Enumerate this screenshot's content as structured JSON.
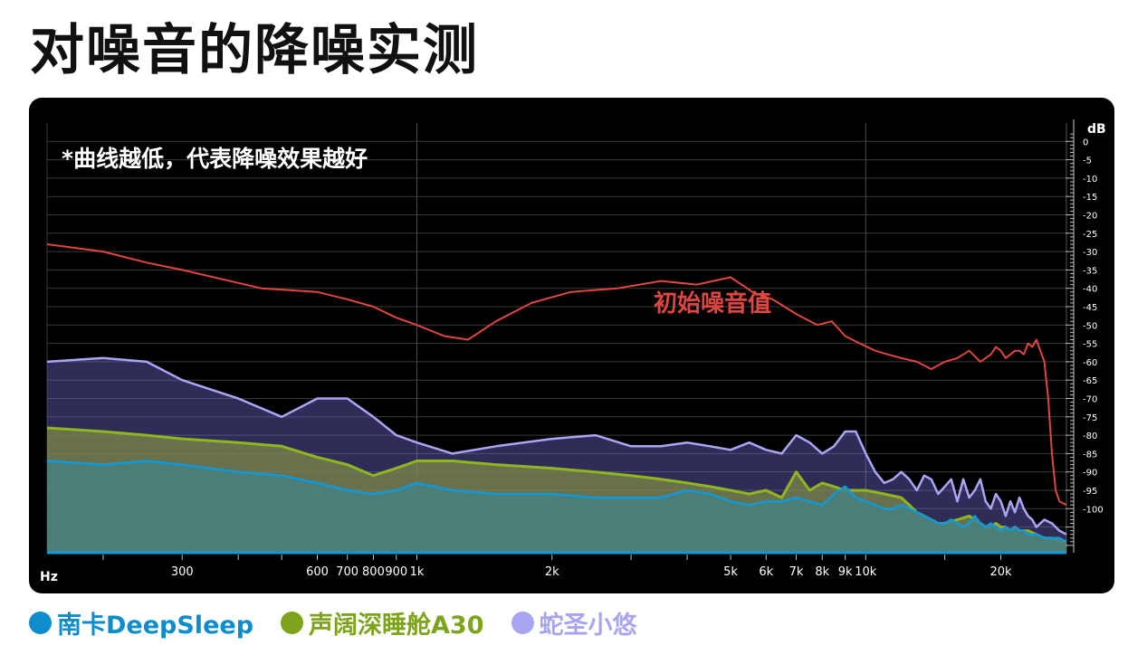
{
  "page": {
    "title": "对噪音的降噪实测"
  },
  "legend": [
    {
      "label": "南卡DeepSleep",
      "color": "#0e8ccc"
    },
    {
      "label": "声阔深睡舱A30",
      "color": "#7ea31c"
    },
    {
      "label": "蛇圣小悠",
      "color": "#a7a5ef"
    }
  ],
  "colors": {
    "background": "#000000",
    "grid": "#3a3a3a",
    "axis_text": "#ffffff",
    "original_noise": "#e0463f",
    "soundcore": "#8fb51f",
    "snake": "#a9a7f3",
    "nanka": "#0f99db"
  },
  "chart_data": {
    "type": "area",
    "title": "对噪音的降噪实测",
    "note": "*曲线越低，代表降噪效果越好",
    "xlabel": "Hz",
    "ylabel": "dB",
    "xscale": "log",
    "xlim": [
      150,
      28000
    ],
    "ylim": [
      -112,
      5
    ],
    "x_ticks": [
      {
        "value": 300,
        "label": "300"
      },
      {
        "value": 600,
        "label": "600"
      },
      {
        "value": 700,
        "label": "700"
      },
      {
        "value": 800,
        "label": "800"
      },
      {
        "value": 900,
        "label": "900"
      },
      {
        "value": 1000,
        "label": "1k"
      },
      {
        "value": 2000,
        "label": "2k"
      },
      {
        "value": 5000,
        "label": "5k"
      },
      {
        "value": 6000,
        "label": "6k"
      },
      {
        "value": 7000,
        "label": "7k"
      },
      {
        "value": 8000,
        "label": "8k"
      },
      {
        "value": 9000,
        "label": "9k"
      },
      {
        "value": 10000,
        "label": "10k"
      },
      {
        "value": 20000,
        "label": "20k"
      }
    ],
    "y_ticks": [
      0,
      -5,
      -10,
      -15,
      -20,
      -25,
      -30,
      -35,
      -40,
      -45,
      -50,
      -55,
      -60,
      -65,
      -70,
      -75,
      -80,
      -85,
      -90,
      -95,
      -100
    ],
    "y_tick_labels": [
      "0",
      "-5",
      "-10",
      "-15",
      "-20",
      "-25",
      "-30",
      "-35",
      "-40",
      "-45",
      "-50",
      "-55",
      "-60",
      "-65",
      "-70",
      "-75",
      "-80",
      "-85",
      "-90",
      "-95",
      "-100"
    ],
    "annotations": [
      {
        "text": "初始噪音值",
        "x": 3500,
        "y": -39,
        "color": "#e0463f"
      }
    ],
    "series": [
      {
        "name": "初始噪音值",
        "key": "original",
        "style": "line",
        "points": [
          [
            150,
            -28
          ],
          [
            200,
            -30
          ],
          [
            250,
            -33
          ],
          [
            300,
            -35
          ],
          [
            450,
            -40
          ],
          [
            600,
            -41
          ],
          [
            700,
            -43
          ],
          [
            800,
            -45
          ],
          [
            900,
            -48
          ],
          [
            1000,
            -50
          ],
          [
            1150,
            -53
          ],
          [
            1300,
            -54
          ],
          [
            1500,
            -49
          ],
          [
            1800,
            -44
          ],
          [
            2200,
            -41
          ],
          [
            2800,
            -40
          ],
          [
            3500,
            -38
          ],
          [
            4200,
            -39
          ],
          [
            5000,
            -37
          ],
          [
            5600,
            -41
          ],
          [
            6200,
            -43
          ],
          [
            7000,
            -47
          ],
          [
            7800,
            -50
          ],
          [
            8400,
            -49
          ],
          [
            9000,
            -53
          ],
          [
            9700,
            -55
          ],
          [
            10500,
            -57
          ],
          [
            11200,
            -58
          ],
          [
            12000,
            -59
          ],
          [
            13000,
            -60
          ],
          [
            14000,
            -62
          ],
          [
            15000,
            -60
          ],
          [
            16000,
            -59
          ],
          [
            17000,
            -57
          ],
          [
            18000,
            -60
          ],
          [
            19000,
            -58
          ],
          [
            19500,
            -56
          ],
          [
            20000,
            -57
          ],
          [
            20500,
            -59
          ],
          [
            21000,
            -58
          ],
          [
            21500,
            -57
          ],
          [
            22000,
            -57
          ],
          [
            22500,
            -58
          ],
          [
            23000,
            -55
          ],
          [
            23500,
            -56
          ],
          [
            24000,
            -54
          ],
          [
            24500,
            -57
          ],
          [
            25000,
            -60
          ],
          [
            25500,
            -70
          ],
          [
            26000,
            -85
          ],
          [
            26500,
            -95
          ],
          [
            27000,
            -98
          ],
          [
            28000,
            -99
          ]
        ]
      },
      {
        "name": "蛇圣小悠",
        "key": "snake",
        "style": "area",
        "points": [
          [
            150,
            -60
          ],
          [
            200,
            -59
          ],
          [
            250,
            -60
          ],
          [
            300,
            -65
          ],
          [
            400,
            -70
          ],
          [
            500,
            -75
          ],
          [
            600,
            -70
          ],
          [
            700,
            -70
          ],
          [
            800,
            -75
          ],
          [
            900,
            -80
          ],
          [
            1000,
            -82
          ],
          [
            1200,
            -85
          ],
          [
            1500,
            -83
          ],
          [
            2000,
            -81
          ],
          [
            2500,
            -80
          ],
          [
            3000,
            -83
          ],
          [
            3500,
            -83
          ],
          [
            4000,
            -82
          ],
          [
            4500,
            -83
          ],
          [
            5000,
            -84
          ],
          [
            5500,
            -82
          ],
          [
            6000,
            -84
          ],
          [
            6500,
            -85
          ],
          [
            7000,
            -80
          ],
          [
            7500,
            -82
          ],
          [
            8000,
            -85
          ],
          [
            8500,
            -83
          ],
          [
            9000,
            -79
          ],
          [
            9500,
            -79
          ],
          [
            10000,
            -85
          ],
          [
            10500,
            -90
          ],
          [
            11000,
            -93
          ],
          [
            11500,
            -92
          ],
          [
            12000,
            -90
          ],
          [
            12500,
            -92
          ],
          [
            13000,
            -95
          ],
          [
            13500,
            -91
          ],
          [
            14000,
            -92
          ],
          [
            14500,
            -96
          ],
          [
            15000,
            -94
          ],
          [
            15500,
            -92
          ],
          [
            16000,
            -98
          ],
          [
            16500,
            -92
          ],
          [
            17000,
            -97
          ],
          [
            17500,
            -95
          ],
          [
            18000,
            -92
          ],
          [
            18500,
            -98
          ],
          [
            19000,
            -100
          ],
          [
            19500,
            -96
          ],
          [
            20000,
            -98
          ],
          [
            20500,
            -102
          ],
          [
            21000,
            -98
          ],
          [
            21500,
            -101
          ],
          [
            22000,
            -97
          ],
          [
            22500,
            -100
          ],
          [
            23000,
            -102
          ],
          [
            23500,
            -103
          ],
          [
            24000,
            -105
          ],
          [
            24500,
            -104
          ],
          [
            25000,
            -103
          ],
          [
            26000,
            -104
          ],
          [
            27000,
            -106
          ],
          [
            28000,
            -107
          ]
        ]
      },
      {
        "name": "声阔深睡舱A30",
        "key": "soundcore",
        "style": "area",
        "points": [
          [
            150,
            -78
          ],
          [
            200,
            -79
          ],
          [
            250,
            -80
          ],
          [
            300,
            -81
          ],
          [
            400,
            -82
          ],
          [
            500,
            -83
          ],
          [
            600,
            -86
          ],
          [
            700,
            -88
          ],
          [
            800,
            -91
          ],
          [
            900,
            -89
          ],
          [
            1000,
            -87
          ],
          [
            1200,
            -87
          ],
          [
            1500,
            -88
          ],
          [
            2000,
            -89
          ],
          [
            2500,
            -90
          ],
          [
            3000,
            -91
          ],
          [
            3500,
            -92
          ],
          [
            4000,
            -93
          ],
          [
            4500,
            -94
          ],
          [
            5000,
            -95
          ],
          [
            5500,
            -96
          ],
          [
            6000,
            -95
          ],
          [
            6500,
            -97
          ],
          [
            7000,
            -90
          ],
          [
            7500,
            -95
          ],
          [
            8000,
            -93
          ],
          [
            8500,
            -94
          ],
          [
            9000,
            -95
          ],
          [
            10000,
            -95
          ],
          [
            11000,
            -96
          ],
          [
            12000,
            -97
          ],
          [
            12500,
            -99
          ],
          [
            13000,
            -101
          ],
          [
            13500,
            -102
          ],
          [
            14000,
            -103
          ],
          [
            14500,
            -104
          ],
          [
            15000,
            -104
          ],
          [
            16000,
            -103
          ],
          [
            17000,
            -102
          ],
          [
            17500,
            -103
          ],
          [
            18000,
            -104
          ],
          [
            18500,
            -105
          ],
          [
            19000,
            -105
          ],
          [
            19500,
            -104
          ],
          [
            20000,
            -105
          ],
          [
            20500,
            -105
          ],
          [
            21000,
            -106
          ],
          [
            21500,
            -105
          ],
          [
            22000,
            -106
          ],
          [
            22500,
            -106
          ],
          [
            23000,
            -106
          ],
          [
            24000,
            -107
          ],
          [
            25000,
            -108
          ],
          [
            26000,
            -108
          ],
          [
            27000,
            -109
          ],
          [
            28000,
            -109
          ]
        ]
      },
      {
        "name": "南卡DeepSleep",
        "key": "nanka",
        "style": "area",
        "points": [
          [
            150,
            -87
          ],
          [
            200,
            -88
          ],
          [
            250,
            -87
          ],
          [
            300,
            -88
          ],
          [
            400,
            -90
          ],
          [
            500,
            -91
          ],
          [
            600,
            -93
          ],
          [
            700,
            -95
          ],
          [
            800,
            -96
          ],
          [
            900,
            -95
          ],
          [
            1000,
            -93
          ],
          [
            1200,
            -95
          ],
          [
            1500,
            -96
          ],
          [
            2000,
            -96
          ],
          [
            2500,
            -97
          ],
          [
            3000,
            -97
          ],
          [
            3500,
            -97
          ],
          [
            4000,
            -95
          ],
          [
            4500,
            -96
          ],
          [
            5000,
            -98
          ],
          [
            5500,
            -99
          ],
          [
            6000,
            -98
          ],
          [
            6500,
            -98
          ],
          [
            7000,
            -97
          ],
          [
            7500,
            -98
          ],
          [
            8000,
            -99
          ],
          [
            8500,
            -96
          ],
          [
            9000,
            -94
          ],
          [
            9500,
            -97
          ],
          [
            10000,
            -98
          ],
          [
            10500,
            -99
          ],
          [
            11000,
            -100
          ],
          [
            11500,
            -100
          ],
          [
            12000,
            -99
          ],
          [
            12500,
            -100
          ],
          [
            13000,
            -101
          ],
          [
            13500,
            -102
          ],
          [
            14000,
            -103
          ],
          [
            14500,
            -104
          ],
          [
            15000,
            -104
          ],
          [
            15500,
            -103
          ],
          [
            16000,
            -104
          ],
          [
            16500,
            -105
          ],
          [
            17000,
            -104
          ],
          [
            17500,
            -102
          ],
          [
            18000,
            -104
          ],
          [
            18500,
            -105
          ],
          [
            19000,
            -104
          ],
          [
            19500,
            -105
          ],
          [
            20000,
            -106
          ],
          [
            20500,
            -105
          ],
          [
            21000,
            -106
          ],
          [
            21500,
            -105
          ],
          [
            22000,
            -106
          ],
          [
            22500,
            -106
          ],
          [
            23000,
            -107
          ],
          [
            24000,
            -107
          ],
          [
            25000,
            -108
          ],
          [
            26000,
            -108
          ],
          [
            27000,
            -108
          ],
          [
            28000,
            -109
          ]
        ]
      }
    ]
  }
}
